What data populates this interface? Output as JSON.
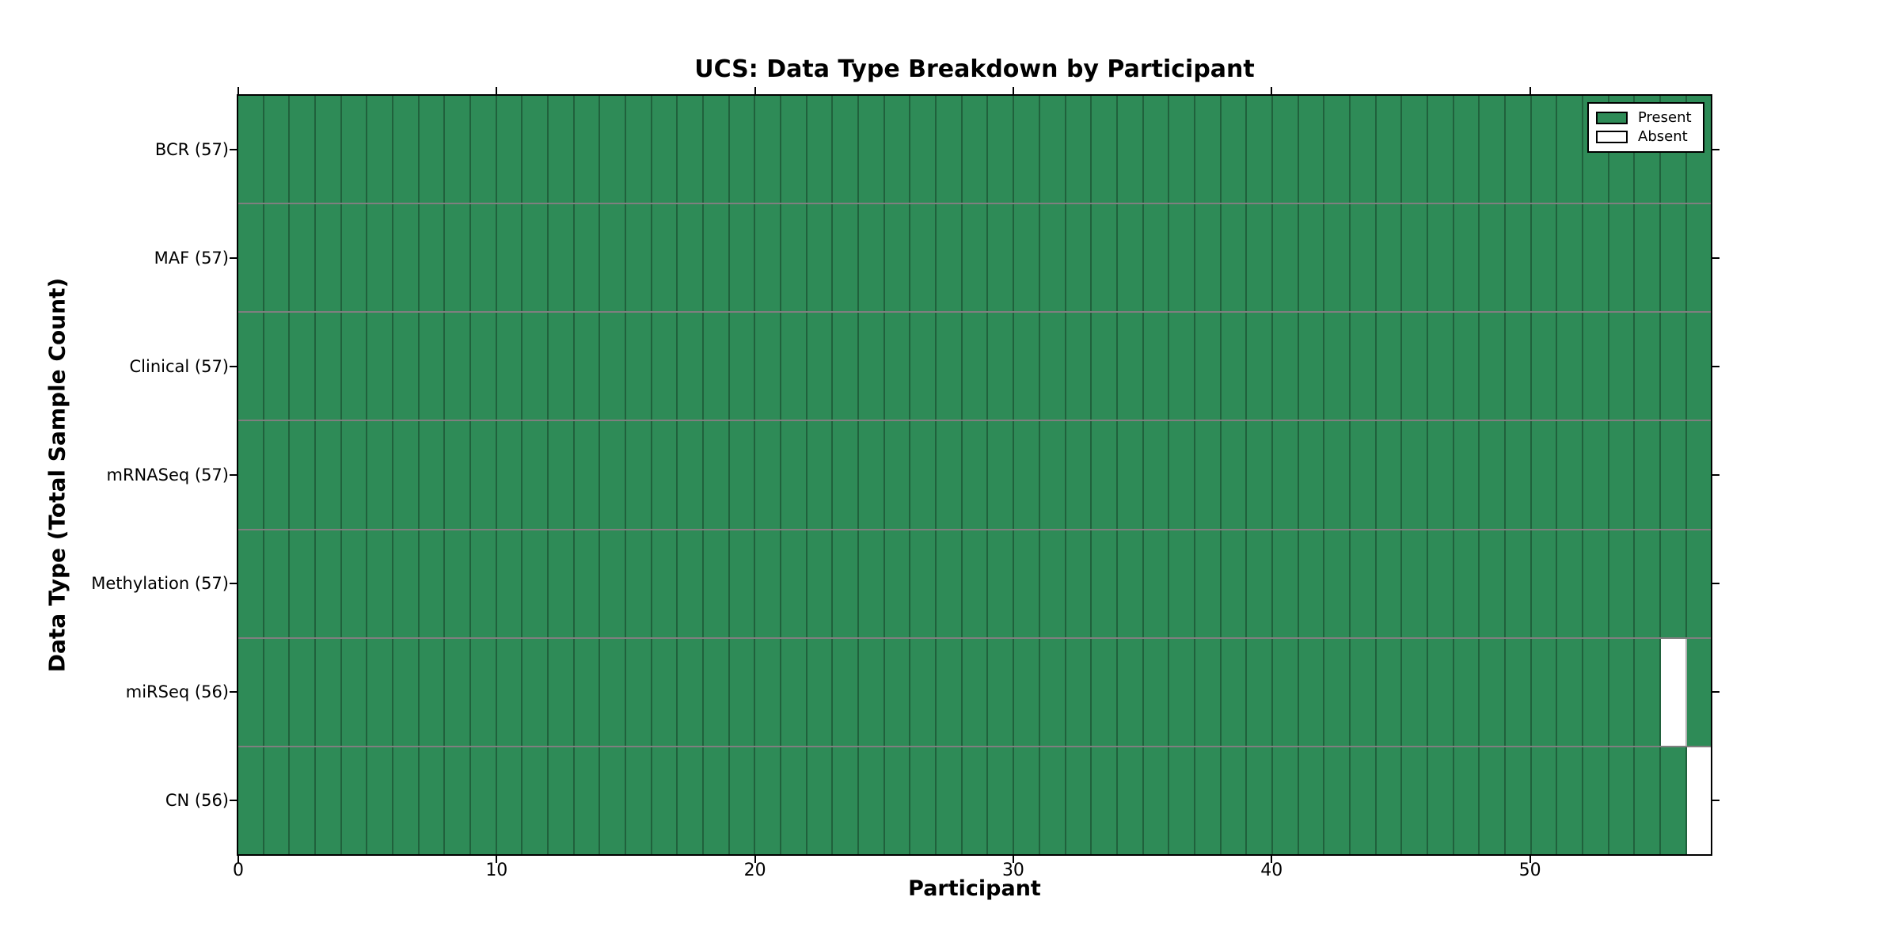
{
  "chart_data": {
    "type": "heatmap",
    "title": "UCS: Data Type Breakdown by Participant",
    "xlabel": "Participant",
    "ylabel": "Data Type (Total Sample Count)",
    "x_ticks": [
      0,
      10,
      20,
      30,
      40,
      50
    ],
    "x_range": [
      0,
      57
    ],
    "n_participants": 57,
    "grid": false,
    "rows": [
      {
        "data_type": "BCR",
        "label": "BCR (57)",
        "sample_count": 57,
        "absent_participant_indices": []
      },
      {
        "data_type": "MAF",
        "label": "MAF (57)",
        "sample_count": 57,
        "absent_participant_indices": []
      },
      {
        "data_type": "Clinical",
        "label": "Clinical (57)",
        "sample_count": 57,
        "absent_participant_indices": []
      },
      {
        "data_type": "mRNASeq",
        "label": "mRNASeq (57)",
        "sample_count": 57,
        "absent_participant_indices": []
      },
      {
        "data_type": "Methylation",
        "label": "Methylation (57)",
        "sample_count": 57,
        "absent_participant_indices": []
      },
      {
        "data_type": "miRSeq",
        "label": "miRSeq (56)",
        "sample_count": 56,
        "absent_participant_indices": [
          55
        ]
      },
      {
        "data_type": "CN",
        "label": "CN (56)",
        "sample_count": 56,
        "absent_participant_indices": [
          56
        ]
      }
    ],
    "legend": {
      "position": "upper right",
      "entries": [
        {
          "label": "Present",
          "color": "#2E8B57"
        },
        {
          "label": "Absent",
          "color": "#FFFFFF"
        }
      ]
    },
    "colors": {
      "present": "#2E8B57",
      "absent": "#FFFFFF",
      "axis_line": "#000000",
      "background": "#FFFFFF",
      "text": "#000000"
    }
  }
}
